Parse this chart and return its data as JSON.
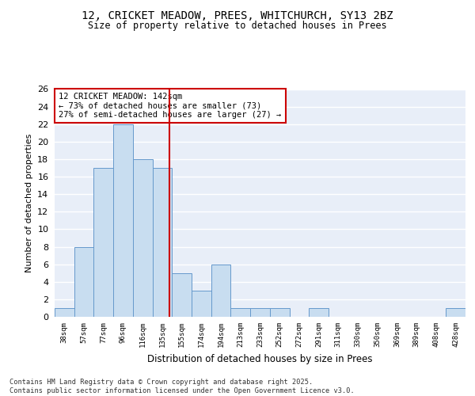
{
  "title1": "12, CRICKET MEADOW, PREES, WHITCHURCH, SY13 2BZ",
  "title2": "Size of property relative to detached houses in Prees",
  "xlabel": "Distribution of detached houses by size in Prees",
  "ylabel": "Number of detached properties",
  "bar_labels": [
    "38sqm",
    "57sqm",
    "77sqm",
    "96sqm",
    "116sqm",
    "135sqm",
    "155sqm",
    "174sqm",
    "194sqm",
    "213sqm",
    "233sqm",
    "252sqm",
    "272sqm",
    "291sqm",
    "311sqm",
    "330sqm",
    "350sqm",
    "369sqm",
    "389sqm",
    "408sqm",
    "428sqm"
  ],
  "bar_values": [
    1,
    8,
    17,
    22,
    18,
    17,
    5,
    3,
    6,
    1,
    1,
    1,
    0,
    1,
    0,
    0,
    0,
    0,
    0,
    0,
    1
  ],
  "bar_color": "#c8ddf0",
  "bar_edge_color": "#6699cc",
  "bg_color": "#e8eef8",
  "grid_color": "#ffffff",
  "vline_color": "#cc0000",
  "annotation_text": "12 CRICKET MEADOW: 142sqm\n← 73% of detached houses are smaller (73)\n27% of semi-detached houses are larger (27) →",
  "annotation_box_color": "#ffffff",
  "annotation_box_edge": "#cc0000",
  "footer_text": "Contains HM Land Registry data © Crown copyright and database right 2025.\nContains public sector information licensed under the Open Government Licence v3.0.",
  "ylim": [
    0,
    26
  ],
  "yticks": [
    0,
    2,
    4,
    6,
    8,
    10,
    12,
    14,
    16,
    18,
    20,
    22,
    24,
    26
  ]
}
